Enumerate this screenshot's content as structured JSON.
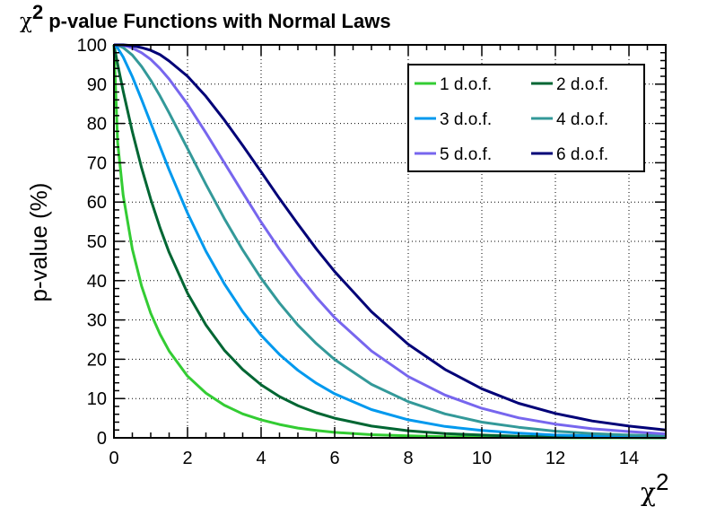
{
  "title": {
    "symbol": "χ",
    "superscript": "2",
    "text": "p-value Functions with Normal Laws"
  },
  "chart_data": {
    "type": "line",
    "xlabel": {
      "symbol": "χ",
      "superscript": "2"
    },
    "ylabel": "p-value (%)",
    "xlim": [
      0,
      15
    ],
    "ylim": [
      0,
      100
    ],
    "x_ticks": [
      "0",
      "2",
      "4",
      "6",
      "8",
      "10",
      "12",
      "14"
    ],
    "y_ticks": [
      "0",
      "10",
      "20",
      "30",
      "40",
      "50",
      "60",
      "70",
      "80",
      "90",
      "100"
    ],
    "grid": true,
    "legend_position": "top-right",
    "x": [
      0.1,
      0.25,
      0.5,
      0.75,
      1,
      1.25,
      1.5,
      2,
      2.5,
      3,
      3.5,
      4,
      4.5,
      5,
      5.5,
      6,
      7,
      8,
      9,
      10,
      11,
      12,
      13,
      14,
      15
    ],
    "series": [
      {
        "name": "1 d.o.f.",
        "color": "#33cc33",
        "values": [
          75.2,
          61.7,
          48.0,
          38.6,
          31.7,
          26.4,
          22.1,
          15.7,
          11.4,
          8.3,
          6.1,
          4.6,
          3.4,
          2.5,
          1.9,
          1.4,
          0.8,
          0.5,
          0.3,
          0.2,
          0.1,
          0.05,
          0.03,
          0.02,
          0.01
        ]
      },
      {
        "name": "2 d.o.f.",
        "color": "#006633",
        "values": [
          95.1,
          88.2,
          77.9,
          68.7,
          60.7,
          53.5,
          47.2,
          36.8,
          28.7,
          22.3,
          17.4,
          13.5,
          10.5,
          8.2,
          6.4,
          5.0,
          3.0,
          1.8,
          1.1,
          0.7,
          0.4,
          0.25,
          0.15,
          0.09,
          0.06
        ]
      },
      {
        "name": "3 d.o.f.",
        "color": "#0099ee",
        "values": [
          99.2,
          96.9,
          91.9,
          86.1,
          80.1,
          74.1,
          68.2,
          57.2,
          47.5,
          39.2,
          32.1,
          26.1,
          21.2,
          17.2,
          13.9,
          11.2,
          7.2,
          4.6,
          2.9,
          1.9,
          1.2,
          0.7,
          0.5,
          0.3,
          0.2
        ]
      },
      {
        "name": "4 d.o.f.",
        "color": "#339999",
        "values": [
          99.9,
          99.3,
          97.4,
          94.5,
          91.0,
          87.0,
          82.7,
          73.6,
          64.5,
          55.8,
          47.8,
          40.6,
          34.3,
          28.7,
          24.0,
          19.9,
          13.6,
          9.2,
          6.1,
          4.0,
          2.7,
          1.7,
          1.1,
          0.7,
          0.5
        ]
      },
      {
        "name": "5 d.o.f.",
        "color": "#7766ee",
        "values": [
          100.0,
          99.9,
          99.2,
          98.0,
          96.3,
          94.0,
          91.3,
          84.9,
          77.6,
          70.0,
          62.4,
          54.9,
          48.0,
          41.6,
          35.8,
          30.6,
          22.1,
          15.6,
          10.9,
          7.5,
          5.1,
          3.5,
          2.3,
          1.6,
          1.0
        ]
      },
      {
        "name": "6 d.o.f.",
        "color": "#000077",
        "values": [
          100.0,
          100.0,
          99.8,
          99.3,
          98.6,
          97.5,
          95.9,
          92.0,
          86.9,
          80.9,
          74.4,
          67.7,
          60.9,
          54.4,
          48.1,
          42.3,
          32.1,
          23.8,
          17.4,
          12.5,
          8.8,
          6.2,
          4.3,
          3.0,
          2.0
        ]
      }
    ]
  }
}
